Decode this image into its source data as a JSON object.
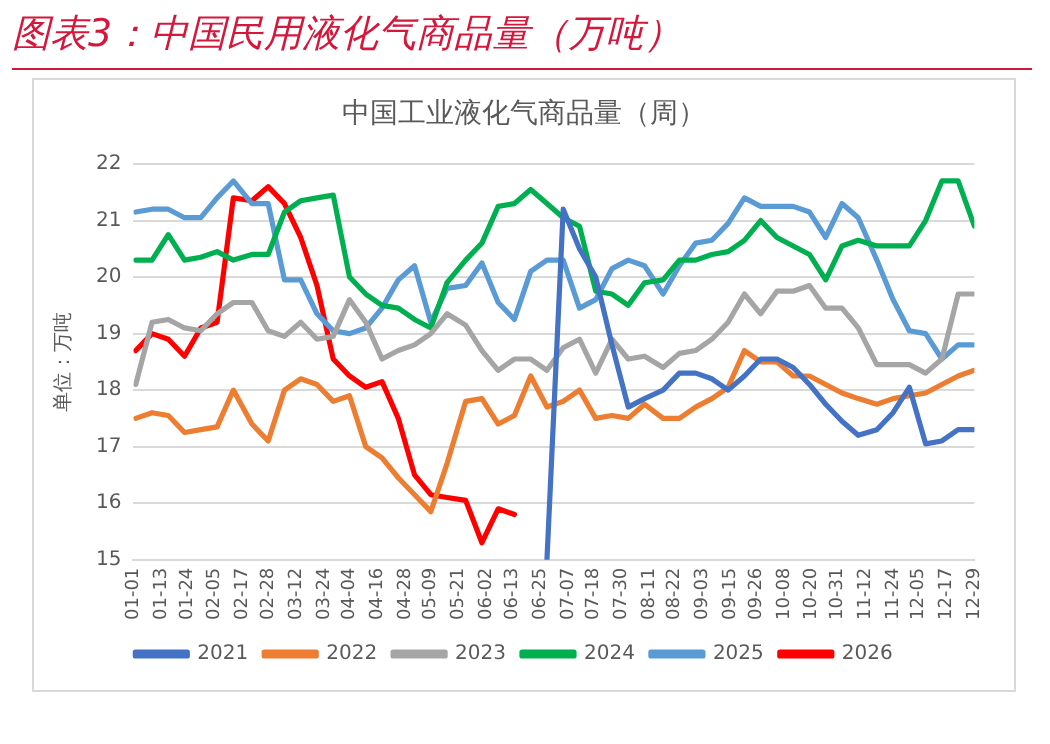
{
  "chart_data": {
    "type": "line",
    "title": "图表3：中国民用液化气商品量（万吨）",
    "subtitle": "中国工业液化气商品量（周）",
    "ylabel": "单位：万吨",
    "x": [
      "--01-02",
      "--01-09",
      "--01-16",
      "--01-23",
      "--01-30",
      "--02-06",
      "--02-13",
      "--02-21",
      "--02-28",
      "--03-07",
      "--03-14",
      "--03-21",
      "--03-28",
      "--04-04",
      "--04-11",
      "--04-18",
      "--04-25",
      "--05-02",
      "--05-09",
      "--05-16",
      "--05-24",
      "--05-31",
      "--06-07",
      "--06-14",
      "--06-21",
      "--06-28",
      "--07-05",
      "--07-12",
      "--07-19",
      "--07-26",
      "--08-02",
      "--08-09",
      "--08-17",
      "--08-24",
      "--08-31",
      "--09-07",
      "--09-14",
      "--09-21",
      "--09-28",
      "--10-05",
      "--10-12",
      "--10-19",
      "--10-26",
      "--11-02",
      "--11-09",
      "--11-17",
      "--11-24",
      "--12-01",
      "--12-08",
      "--12-15",
      "--12-22",
      "--12-29"
    ],
    "xlim": [
      "--01-01",
      "--12-29"
    ],
    "xticks": [
      {
        "value": "--01-01",
        "label": "01-01"
      },
      {
        "value": "--01-13",
        "label": "01-13"
      },
      {
        "value": "--01-24",
        "label": "01-24"
      },
      {
        "value": "--02-05",
        "label": "02-05"
      },
      {
        "value": "--02-17",
        "label": "02-17"
      },
      {
        "value": "--02-28",
        "label": "02-28"
      },
      {
        "value": "--03-12",
        "label": "03-12"
      },
      {
        "value": "--03-24",
        "label": "03-24"
      },
      {
        "value": "--04-04",
        "label": "04-04"
      },
      {
        "value": "--04-16",
        "label": "04-16"
      },
      {
        "value": "--04-28",
        "label": "04-28"
      },
      {
        "value": "--05-09",
        "label": "05-09"
      },
      {
        "value": "--05-21",
        "label": "05-21"
      },
      {
        "value": "--06-02",
        "label": "06-02"
      },
      {
        "value": "--06-13",
        "label": "06-13"
      },
      {
        "value": "--06-25",
        "label": "06-25"
      },
      {
        "value": "--07-07",
        "label": "07-07"
      },
      {
        "value": "--07-18",
        "label": "07-18"
      },
      {
        "value": "--07-30",
        "label": "07-30"
      },
      {
        "value": "--08-11",
        "label": "08-11"
      },
      {
        "value": "--08-22",
        "label": "08-22"
      },
      {
        "value": "--09-03",
        "label": "09-03"
      },
      {
        "value": "--09-15",
        "label": "09-15"
      },
      {
        "value": "--09-26",
        "label": "09-26"
      },
      {
        "value": "--10-08",
        "label": "10-08"
      },
      {
        "value": "--10-20",
        "label": "10-20"
      },
      {
        "value": "--10-31",
        "label": "10-31"
      },
      {
        "value": "--11-12",
        "label": "11-12"
      },
      {
        "value": "--11-24",
        "label": "11-24"
      },
      {
        "value": "--12-05",
        "label": "12-05"
      },
      {
        "value": "--12-17",
        "label": "12-17"
      },
      {
        "value": "--12-29",
        "label": "12-29"
      }
    ],
    "ylim": [
      15,
      22
    ],
    "yticks": [
      15,
      16,
      17,
      18,
      19,
      20,
      21,
      22
    ],
    "grid": "y",
    "legend": "bottom",
    "marker": "none",
    "line_style": "solid",
    "series": [
      {
        "name": "2021",
        "color": "#4472c4",
        "values": [
          null,
          null,
          null,
          null,
          null,
          null,
          null,
          null,
          null,
          null,
          null,
          null,
          null,
          null,
          null,
          null,
          null,
          null,
          null,
          null,
          null,
          null,
          null,
          null,
          null,
          15,
          21.2,
          20.5,
          20.0,
          18.8,
          17.7,
          17.85,
          18.0,
          18.3,
          18.3,
          18.2,
          18.0,
          18.25,
          18.55,
          18.55,
          18.4,
          18.1,
          17.75,
          17.45,
          17.2,
          17.3,
          17.6,
          18.05,
          17.05,
          17.1,
          17.3,
          17.3
        ]
      },
      {
        "name": "2022",
        "color": "#ed7d31",
        "values": [
          17.5,
          17.6,
          17.55,
          17.25,
          17.3,
          17.35,
          18.0,
          17.4,
          17.1,
          18.0,
          18.2,
          18.1,
          17.8,
          17.9,
          17.0,
          16.8,
          16.45,
          16.15,
          15.85,
          16.7,
          17.8,
          17.85,
          17.4,
          17.55,
          18.25,
          17.7,
          17.8,
          18.0,
          17.5,
          17.55,
          17.5,
          17.75,
          17.5,
          17.5,
          17.7,
          17.85,
          18.05,
          18.7,
          18.5,
          18.5,
          18.25,
          18.25,
          18.1,
          17.95,
          17.85,
          17.75,
          17.85,
          17.9,
          17.95,
          18.1,
          18.25,
          18.35
        ]
      },
      {
        "name": "2023",
        "color": "#a5a5a5",
        "values": [
          18.1,
          19.2,
          19.25,
          19.1,
          19.05,
          19.35,
          19.55,
          19.55,
          19.05,
          18.95,
          19.2,
          18.9,
          18.95,
          19.6,
          19.2,
          18.55,
          18.7,
          18.8,
          19.0,
          19.35,
          19.15,
          18.7,
          18.35,
          18.55,
          18.55,
          18.35,
          18.75,
          18.9,
          18.3,
          18.9,
          18.55,
          18.6,
          18.4,
          18.65,
          18.7,
          18.9,
          19.2,
          19.7,
          19.35,
          19.75,
          19.75,
          19.85,
          19.45,
          19.45,
          19.1,
          18.45,
          18.45,
          18.45,
          18.3,
          18.55,
          19.7,
          19.7
        ]
      },
      {
        "name": "2024",
        "color": "#00b050",
        "values": [
          20.3,
          20.3,
          20.75,
          20.3,
          20.35,
          20.45,
          20.3,
          20.4,
          20.4,
          21.15,
          21.35,
          21.4,
          21.45,
          20.0,
          19.7,
          19.5,
          19.45,
          19.25,
          19.1,
          19.9,
          20.3,
          20.6,
          21.25,
          21.3,
          21.55,
          21.3,
          21.05,
          20.9,
          19.75,
          19.7,
          19.5,
          19.9,
          19.95,
          20.3,
          20.3,
          20.4,
          20.45,
          20.65,
          21.0,
          20.7,
          20.55,
          20.4,
          19.95,
          20.55,
          20.65,
          20.55,
          20.55,
          20.55,
          21.0,
          21.7,
          21.7,
          20.9
        ]
      },
      {
        "name": "2025",
        "color": "#5b9bd5",
        "values": [
          21.15,
          21.2,
          21.2,
          21.05,
          21.05,
          21.4,
          21.7,
          21.3,
          21.3,
          19.95,
          19.95,
          19.35,
          19.05,
          19.0,
          19.1,
          19.45,
          19.95,
          20.2,
          19.2,
          19.8,
          19.85,
          20.25,
          19.55,
          19.25,
          20.1,
          20.3,
          20.3,
          19.45,
          19.6,
          20.15,
          20.3,
          20.2,
          19.7,
          20.2,
          20.6,
          20.65,
          20.95,
          21.4,
          21.25,
          21.25,
          21.25,
          21.15,
          20.7,
          21.3,
          21.05,
          20.3,
          19.6,
          19.05,
          19.0,
          18.55,
          18.8,
          18.8
        ]
      },
      {
        "name": "2026",
        "color": "#ff0000",
        "values": [
          18.7,
          19.0,
          18.9,
          18.6,
          19.1,
          19.2,
          21.4,
          21.35,
          21.6,
          21.3,
          20.7,
          19.85,
          18.55,
          18.25,
          18.05,
          18.15,
          17.5,
          16.5,
          16.15,
          16.1,
          16.05,
          15.3,
          15.9,
          15.8,
          null,
          null,
          null,
          null,
          null,
          null,
          null,
          null,
          null,
          null,
          null,
          null,
          null,
          null,
          null,
          null,
          null,
          null,
          null,
          null,
          null,
          null,
          null,
          null,
          null,
          null,
          null,
          null
        ]
      }
    ]
  }
}
